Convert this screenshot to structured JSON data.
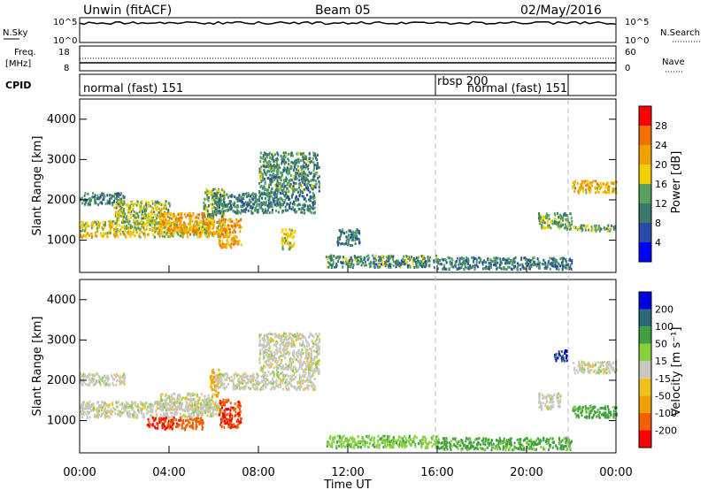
{
  "header": {
    "title": "Unwin (fitACF)",
    "beam": "Beam 05",
    "date": "02/May/2016"
  },
  "top_panels": {
    "noise_left_label": "N.Sky",
    "noise_right_label": "N.Search",
    "noise_ticks_left": [
      "10^5",
      "10^0"
    ],
    "noise_ticks_right": [
      "10^5",
      "10^0"
    ],
    "freq_left_label_1": "Freq.",
    "freq_left_label_2": "[MHz]",
    "freq_ticks_left": [
      "18",
      "8"
    ],
    "freq_ticks_right": [
      "60",
      "0"
    ],
    "nave_label": "Nave",
    "cpid_label": "CPID",
    "cpid_segments": [
      {
        "name": "normal (fast) 151",
        "start": 0,
        "end": 16
      },
      {
        "name": "rbsp 200",
        "start": 16,
        "end": 16.05
      },
      {
        "name": "normal (fast) 151",
        "start": 16.05,
        "end": 22
      }
    ]
  },
  "colors": {
    "power": [
      "#0000ff",
      "#2a4aa8",
      "#3a7a6a",
      "#56a060",
      "#f0d000",
      "#f0a000",
      "#f07000",
      "#ff0000"
    ],
    "velocity": [
      "#ff0000",
      "#f06000",
      "#f0a000",
      "#f0c020",
      "#c8c8c0",
      "#88d040",
      "#40a040",
      "#2a6a7a",
      "#0000dd"
    ]
  },
  "chart_data": [
    {
      "type": "heatmap",
      "name": "power",
      "xlabel": "",
      "ylabel": "Slant Range [km]",
      "xlim": [
        0,
        24
      ],
      "ylim": [
        200,
        4500
      ],
      "y_ticks": [
        "1000",
        "2000",
        "3000",
        "4000"
      ],
      "colorbar_label": "Power [dB]",
      "colorbar_ticks": [
        "4",
        "8",
        "12",
        "16",
        "20",
        "24",
        "28"
      ],
      "regions": [
        {
          "x0": 0.0,
          "x1": 6.5,
          "y0": 1100,
          "y1": 1500,
          "v": 18
        },
        {
          "x0": 0.0,
          "x1": 2.0,
          "y0": 1900,
          "y1": 2200,
          "v": 10
        },
        {
          "x0": 1.5,
          "x1": 4.0,
          "y0": 1400,
          "y1": 2000,
          "v": 16
        },
        {
          "x0": 3.5,
          "x1": 6.0,
          "y0": 1200,
          "y1": 1700,
          "v": 22
        },
        {
          "x0": 5.5,
          "x1": 6.5,
          "y0": 1600,
          "y1": 2300,
          "v": 14
        },
        {
          "x0": 6.2,
          "x1": 7.2,
          "y0": 850,
          "y1": 1550,
          "v": 22
        },
        {
          "x0": 6.0,
          "x1": 10.5,
          "y0": 1700,
          "y1": 2200,
          "v": 10
        },
        {
          "x0": 8.0,
          "x1": 10.7,
          "y0": 2200,
          "y1": 3200,
          "v": 12
        },
        {
          "x0": 9.0,
          "x1": 9.6,
          "y0": 800,
          "y1": 1300,
          "v": 18
        },
        {
          "x0": 11.5,
          "x1": 12.5,
          "y0": 900,
          "y1": 1300,
          "v": 10
        },
        {
          "x0": 11.0,
          "x1": 16.0,
          "y0": 350,
          "y1": 650,
          "v": 12
        },
        {
          "x0": 16.0,
          "x1": 22.0,
          "y0": 300,
          "y1": 600,
          "v": 10
        },
        {
          "x0": 20.5,
          "x1": 22.0,
          "y0": 1300,
          "y1": 1700,
          "v": 14
        },
        {
          "x0": 22.0,
          "x1": 24.0,
          "y0": 2200,
          "y1": 2500,
          "v": 20
        },
        {
          "x0": 22.0,
          "x1": 24.0,
          "y0": 1250,
          "y1": 1400,
          "v": 14
        }
      ]
    },
    {
      "type": "heatmap",
      "name": "velocity",
      "xlabel": "Time UT",
      "ylabel": "Slant Range [km]",
      "xlim": [
        0,
        24
      ],
      "ylim": [
        200,
        4500
      ],
      "x_ticks": [
        "00:00",
        "04:00",
        "08:00",
        "12:00",
        "16:00",
        "20:00",
        "00:00"
      ],
      "y_ticks": [
        "1000",
        "2000",
        "3000",
        "4000"
      ],
      "colorbar_label": "Velocity [m s⁻¹]",
      "colorbar_ticks": [
        "-200",
        "-100",
        "-50",
        "-15",
        "15",
        "50",
        "100",
        "200"
      ],
      "regions": [
        {
          "x0": 0.0,
          "x1": 6.5,
          "y0": 1100,
          "y1": 1500,
          "v": 0
        },
        {
          "x0": 0.0,
          "x1": 2.0,
          "y0": 1900,
          "y1": 2200,
          "v": 0
        },
        {
          "x0": 3.0,
          "x1": 4.5,
          "y0": 800,
          "y1": 1100,
          "v": -200
        },
        {
          "x0": 4.5,
          "x1": 5.5,
          "y0": 800,
          "y1": 1100,
          "v": -120
        },
        {
          "x0": 3.5,
          "x1": 6.0,
          "y0": 1300,
          "y1": 1700,
          "v": 0
        },
        {
          "x0": 5.8,
          "x1": 6.2,
          "y0": 1600,
          "y1": 2300,
          "v": -60
        },
        {
          "x0": 6.2,
          "x1": 7.2,
          "y0": 850,
          "y1": 1550,
          "v": -200
        },
        {
          "x0": 6.0,
          "x1": 10.5,
          "y0": 1800,
          "y1": 2200,
          "v": 0
        },
        {
          "x0": 8.0,
          "x1": 10.7,
          "y0": 2200,
          "y1": 3200,
          "v": 0
        },
        {
          "x0": 11.0,
          "x1": 16.0,
          "y0": 350,
          "y1": 650,
          "v": 40
        },
        {
          "x0": 16.0,
          "x1": 22.0,
          "y0": 300,
          "y1": 600,
          "v": 60
        },
        {
          "x0": 20.5,
          "x1": 21.5,
          "y0": 1300,
          "y1": 1700,
          "v": 0
        },
        {
          "x0": 21.2,
          "x1": 21.8,
          "y0": 2500,
          "y1": 2800,
          "v": 200
        },
        {
          "x0": 22.0,
          "x1": 24.0,
          "y0": 2200,
          "y1": 2500,
          "v": 0
        },
        {
          "x0": 22.0,
          "x1": 24.0,
          "y0": 1100,
          "y1": 1400,
          "v": 60
        }
      ]
    }
  ]
}
